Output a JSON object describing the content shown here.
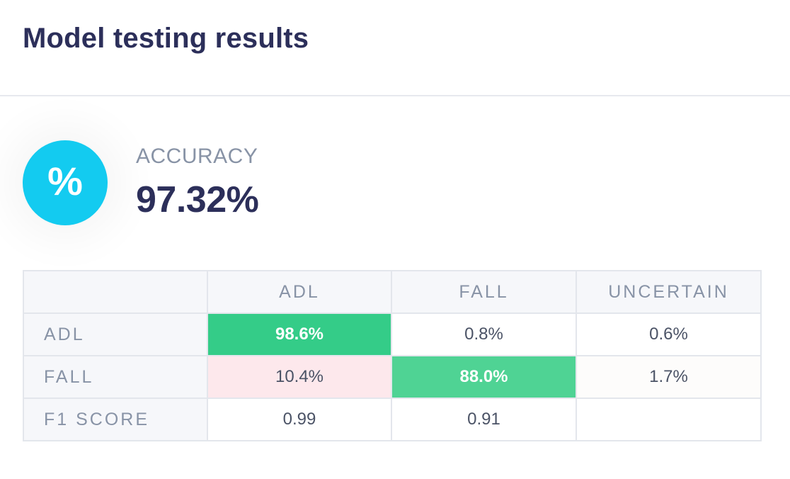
{
  "header": {
    "title": "Model testing results"
  },
  "accuracy": {
    "icon": "percent-icon",
    "icon_glyph": "%",
    "icon_color": "#13cbf0",
    "label": "ACCURACY",
    "value": "97.32%"
  },
  "matrix": {
    "columns": [
      "ADL",
      "FALL",
      "UNCERTAIN"
    ],
    "rows": [
      {
        "label": "ADL",
        "cells": [
          "98.6%",
          "0.8%",
          "0.6%"
        ]
      },
      {
        "label": "FALL",
        "cells": [
          "10.4%",
          "88.0%",
          "1.7%"
        ]
      },
      {
        "label": "F1 SCORE",
        "cells": [
          "0.99",
          "0.91",
          ""
        ]
      }
    ],
    "colors": {
      "correct_high": "#34cc88",
      "correct_mid": "#4fd394",
      "error_tint": "#fde8ec"
    }
  }
}
